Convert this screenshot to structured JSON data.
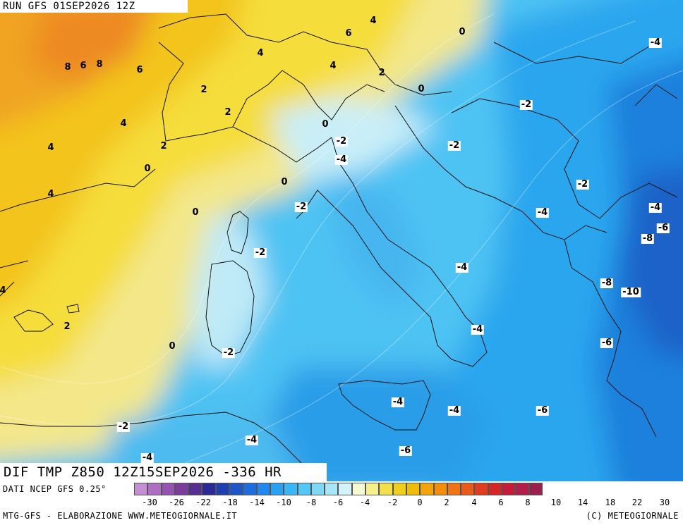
{
  "run_title": "RUN GFS 01SEP2026 12Z",
  "field_title": "DIF TMP Z850 12Z15SEP2026 -336 HR",
  "source_label": "DATI NCEP GFS 0.25°",
  "footer_left": "MTG-GFS - ELABORAZIONE WWW.METEOGIORNALE.IT",
  "footer_right": "(C) METEOGIORNALE",
  "legend": {
    "tick_labels": [
      "-30",
      "-26",
      "-22",
      "-18",
      "-14",
      "-10",
      "-8",
      "-6",
      "-4",
      "-2",
      "0",
      "2",
      "4",
      "6",
      "8",
      "10",
      "14",
      "18",
      "22",
      "30"
    ],
    "colors": [
      "#c58fd3",
      "#ad6fc2",
      "#9654b0",
      "#7a3d9c",
      "#55308f",
      "#2a2a96",
      "#1e3fb0",
      "#1f55c9",
      "#1f6ddc",
      "#2288ee",
      "#2aa0f2",
      "#3ab6f6",
      "#52c8f4",
      "#7ed8f5",
      "#a8e6f7",
      "#d2f3fa",
      "#f4f9d2",
      "#f5f08c",
      "#f1e04a",
      "#eecf1b",
      "#f1bb0a",
      "#f3a40a",
      "#f48c0c",
      "#f07416",
      "#ea5a1a",
      "#e03c1e",
      "#d22627",
      "#c41d3a",
      "#b0204a",
      "#9a1f4a"
    ]
  },
  "contour_labels": [
    {
      "t": "4"
    },
    {
      "t": "6"
    },
    {
      "t": "0"
    },
    {
      "t": "-4"
    },
    {
      "t": "8"
    },
    {
      "t": "6"
    },
    {
      "t": "8"
    },
    {
      "t": "6"
    },
    {
      "t": "4"
    },
    {
      "t": "4"
    },
    {
      "t": "2"
    },
    {
      "t": "0"
    },
    {
      "t": "2"
    },
    {
      "t": "2"
    },
    {
      "t": "-2"
    },
    {
      "t": "4"
    },
    {
      "t": "0"
    },
    {
      "t": "-2"
    },
    {
      "t": "4"
    },
    {
      "t": "2"
    },
    {
      "t": "-2"
    },
    {
      "t": "0"
    },
    {
      "t": "-4"
    },
    {
      "t": "0"
    },
    {
      "t": "-2"
    },
    {
      "t": "4"
    },
    {
      "t": "0"
    },
    {
      "t": "-2"
    },
    {
      "t": "-4"
    },
    {
      "t": "-4"
    },
    {
      "t": "-6"
    },
    {
      "t": "-8"
    },
    {
      "t": "-2"
    },
    {
      "t": "-4"
    },
    {
      "t": "-8"
    },
    {
      "t": "-10"
    },
    {
      "t": "4"
    },
    {
      "t": "2"
    },
    {
      "t": "-4"
    },
    {
      "t": "0"
    },
    {
      "t": "-2"
    },
    {
      "t": "-6"
    },
    {
      "t": "-4"
    },
    {
      "t": "-4"
    },
    {
      "t": "-6"
    },
    {
      "t": "-2"
    },
    {
      "t": "-4"
    },
    {
      "t": "-6"
    },
    {
      "t": "-4"
    }
  ]
}
